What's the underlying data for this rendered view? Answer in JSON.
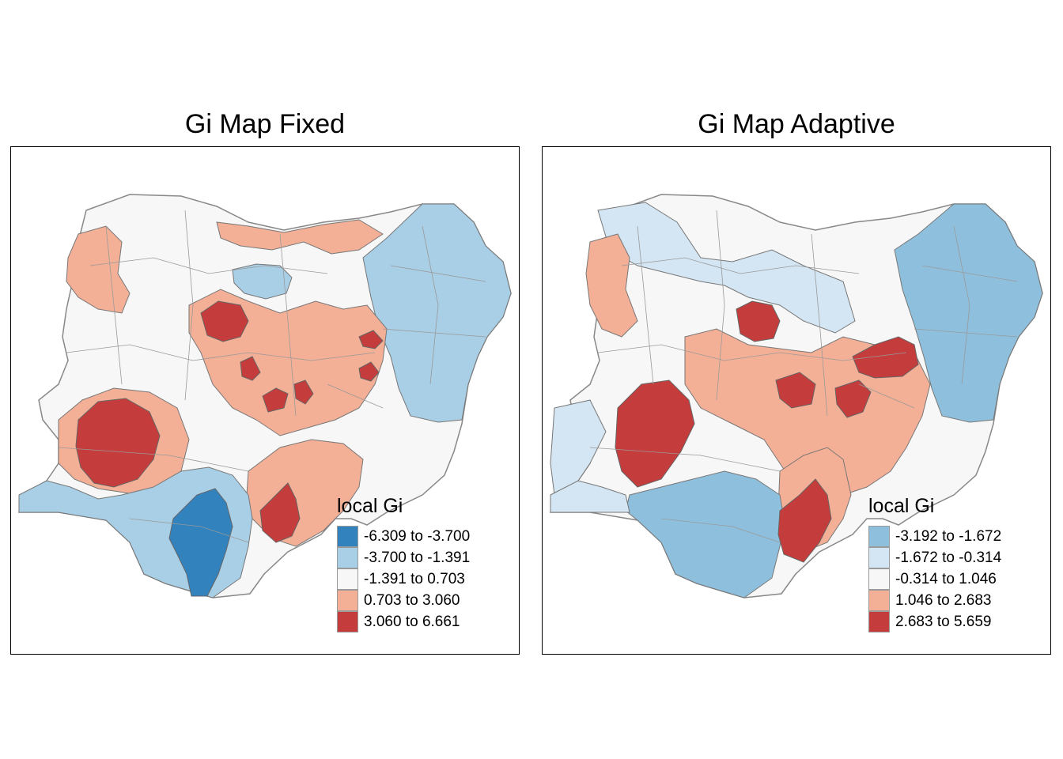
{
  "maps": [
    {
      "title": "Gi Map Fixed",
      "legend": {
        "title": "local Gi",
        "classes": [
          {
            "label": "-6.309 to -3.700",
            "color": "#3182bd"
          },
          {
            "label": "-3.700 to -1.391",
            "color": "#a9cfe6"
          },
          {
            "label": "-1.391 to 0.703",
            "color": "#f7f7f7"
          },
          {
            "label": "0.703 to 3.060",
            "color": "#f4b096"
          },
          {
            "label": "3.060 to 6.661",
            "color": "#c43c3c"
          }
        ]
      }
    },
    {
      "title": "Gi Map Adaptive",
      "legend": {
        "title": "local Gi",
        "classes": [
          {
            "label": "-3.192 to -1.672",
            "color": "#8ec0de"
          },
          {
            "label": "-1.672 to -0.314",
            "color": "#d4e6f3"
          },
          {
            "label": "-0.314 to 1.046",
            "color": "#f7f7f7"
          },
          {
            "label": "1.046 to 2.683",
            "color": "#f4b096"
          },
          {
            "label": "2.683 to 5.659",
            "color": "#c43c3c"
          }
        ]
      }
    }
  ]
}
